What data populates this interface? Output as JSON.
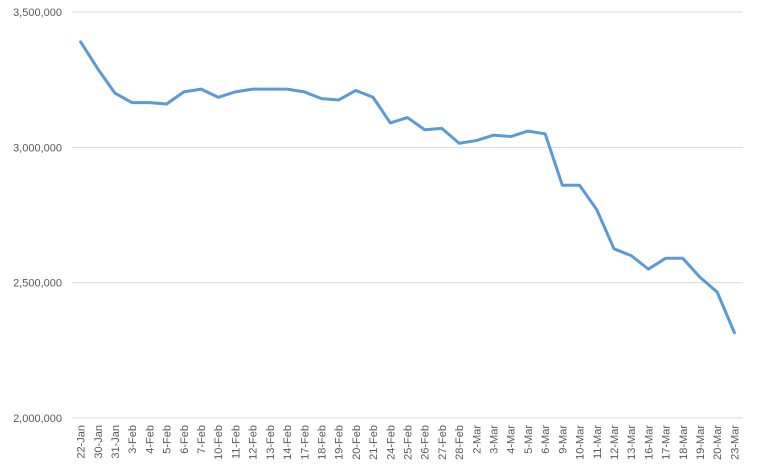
{
  "chart_data": {
    "type": "line",
    "title": "",
    "xlabel": "",
    "ylabel": "",
    "legend": false,
    "grid": true,
    "ylim": [
      2000000,
      3500000
    ],
    "yticks": [
      2000000,
      2500000,
      3000000,
      3500000
    ],
    "ytick_labels": [
      "2,000,000",
      "2,500,000",
      "3,000,000",
      "3,500,000"
    ],
    "categories": [
      "22-Jan",
      "30-Jan",
      "31-Jan",
      "3-Feb",
      "4-Feb",
      "5-Feb",
      "6-Feb",
      "7-Feb",
      "10-Feb",
      "11-Feb",
      "12-Feb",
      "13-Feb",
      "14-Feb",
      "17-Feb",
      "18-Feb",
      "19-Feb",
      "20-Feb",
      "21-Feb",
      "24-Feb",
      "25-Feb",
      "26-Feb",
      "27-Feb",
      "28-Feb",
      "2-Mar",
      "3-Mar",
      "4-Mar",
      "5-Mar",
      "6-Mar",
      "9-Mar",
      "10-Mar",
      "11-Mar",
      "12-Mar",
      "13-Mar",
      "16-Mar",
      "17-Mar",
      "18-Mar",
      "19-Mar",
      "20-Mar",
      "23-Mar"
    ],
    "series": [
      {
        "name": "",
        "values": [
          3390000,
          3290000,
          3200000,
          3165000,
          3165000,
          3160000,
          3205000,
          3215000,
          3185000,
          3205000,
          3215000,
          3215000,
          3215000,
          3205000,
          3180000,
          3175000,
          3210000,
          3185000,
          3090000,
          3110000,
          3065000,
          3070000,
          3015000,
          3025000,
          3045000,
          3040000,
          3060000,
          3050000,
          2860000,
          2860000,
          2770000,
          2625000,
          2600000,
          2550000,
          2590000,
          2590000,
          2520000,
          2465000,
          2315000
        ]
      }
    ],
    "colors": {
      "line": "#5B9BD5",
      "gridline": "#D9D9D9",
      "tick_label": "#595959",
      "background": "#FFFFFF"
    }
  }
}
